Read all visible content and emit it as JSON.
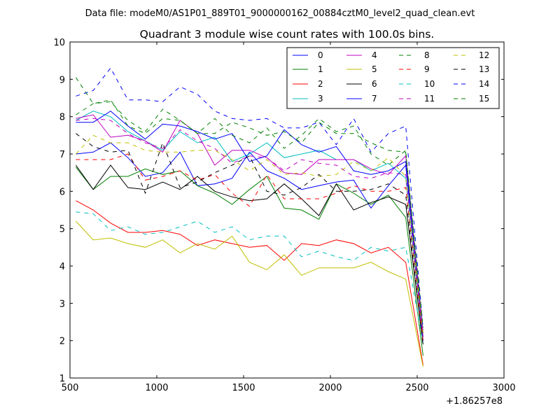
{
  "header": {
    "suptitle": "Data file: modeM0/AS1P01_889T01_9000000162_00884cztM0_level2_quad_clean.evt"
  },
  "chart_data": {
    "type": "line",
    "title": "Quadrant 3 module wise count rates with 100.0s bins.",
    "xlabel": "",
    "ylabel": "",
    "x_offset_label": "+1.86257e8",
    "xlim": [
      500,
      3000
    ],
    "ylim": [
      1,
      10
    ],
    "xticks": [
      500,
      1000,
      1500,
      2000,
      2500,
      3000
    ],
    "yticks": [
      1,
      2,
      3,
      4,
      5,
      6,
      7,
      8,
      9,
      10
    ],
    "grid": false,
    "legend_position": "top-right",
    "x": [
      534,
      634,
      734,
      834,
      934,
      1034,
      1134,
      1234,
      1334,
      1434,
      1534,
      1634,
      1734,
      1834,
      1934,
      2034,
      2134,
      2234,
      2334,
      2434,
      2534
    ],
    "series": [
      {
        "name": "0",
        "color": "#0000ff",
        "dash": "solid",
        "values": [
          7.0,
          7.05,
          7.3,
          6.9,
          6.4,
          6.5,
          7.05,
          6.15,
          6.2,
          6.35,
          7.05,
          6.55,
          6.35,
          6.05,
          6.15,
          6.25,
          6.3,
          5.55,
          6.15,
          6.7,
          2.1
        ]
      },
      {
        "name": "1",
        "color": "#008000",
        "dash": "solid",
        "values": [
          6.65,
          6.05,
          6.4,
          6.4,
          6.6,
          6.45,
          6.55,
          6.15,
          5.95,
          5.65,
          6.05,
          6.4,
          5.55,
          5.5,
          5.25,
          6.2,
          5.95,
          5.65,
          5.9,
          5.3,
          1.6
        ]
      },
      {
        "name": "2",
        "color": "#ff0000",
        "dash": "solid",
        "values": [
          5.75,
          5.5,
          5.15,
          4.9,
          4.9,
          4.95,
          4.85,
          4.55,
          4.7,
          4.6,
          4.5,
          4.55,
          4.15,
          4.6,
          4.55,
          4.7,
          4.6,
          4.35,
          4.5,
          4.1,
          1.35
        ]
      },
      {
        "name": "3",
        "color": "#00bfbf",
        "dash": "solid",
        "values": [
          7.9,
          8.15,
          8.0,
          7.6,
          7.35,
          7.1,
          7.6,
          7.3,
          7.45,
          6.8,
          7.0,
          7.3,
          6.9,
          7.0,
          7.1,
          6.85,
          6.85,
          6.55,
          6.75,
          6.35,
          2.0
        ]
      },
      {
        "name": "4",
        "color": "#bf00bf",
        "dash": "solid",
        "values": [
          7.95,
          8.05,
          7.45,
          7.5,
          7.35,
          7.05,
          7.9,
          7.55,
          6.7,
          7.1,
          7.1,
          6.9,
          6.5,
          6.45,
          6.85,
          6.85,
          6.85,
          6.6,
          6.45,
          6.95,
          2.2
        ]
      },
      {
        "name": "5",
        "color": "#bfbf00",
        "dash": "solid",
        "values": [
          5.2,
          4.7,
          4.75,
          4.6,
          4.5,
          4.7,
          4.35,
          4.6,
          4.45,
          4.8,
          4.1,
          3.9,
          4.3,
          3.75,
          3.95,
          3.95,
          3.95,
          4.1,
          3.85,
          3.65,
          1.3
        ]
      },
      {
        "name": "6",
        "color": "#000000",
        "dash": "solid",
        "values": [
          6.7,
          6.05,
          6.7,
          6.1,
          6.05,
          6.25,
          6.05,
          6.4,
          6.0,
          5.85,
          5.75,
          5.8,
          6.2,
          5.8,
          5.35,
          6.2,
          5.5,
          5.7,
          5.85,
          5.65,
          1.9
        ]
      },
      {
        "name": "7",
        "color": "#0000ff",
        "dash": "solid",
        "values": [
          7.85,
          7.85,
          8.15,
          7.75,
          7.4,
          7.8,
          7.75,
          7.6,
          7.4,
          7.55,
          6.8,
          6.95,
          7.65,
          7.25,
          7.05,
          7.2,
          6.55,
          6.45,
          6.55,
          6.8,
          2.0
        ]
      },
      {
        "name": "8",
        "color": "#008000",
        "dash": "dashed",
        "values": [
          8.05,
          8.35,
          8.4,
          7.9,
          7.6,
          8.2,
          7.9,
          7.55,
          7.95,
          7.5,
          7.3,
          7.7,
          7.15,
          7.5,
          7.95,
          7.6,
          7.75,
          7.0,
          6.7,
          7.1,
          2.2
        ]
      },
      {
        "name": "9",
        "color": "#ff0000",
        "dash": "dashed",
        "values": [
          6.85,
          6.85,
          6.85,
          7.0,
          6.3,
          6.4,
          6.55,
          6.3,
          6.45,
          5.95,
          5.6,
          6.45,
          5.8,
          5.8,
          5.8,
          5.95,
          6.15,
          6.0,
          6.0,
          6.1,
          2.0
        ]
      },
      {
        "name": "10",
        "color": "#00bfbf",
        "dash": "dashed",
        "values": [
          5.45,
          5.4,
          4.95,
          5.05,
          4.85,
          4.9,
          5.05,
          5.2,
          4.9,
          5.05,
          4.7,
          4.8,
          4.8,
          4.25,
          4.4,
          4.25,
          4.15,
          4.5,
          4.4,
          4.5,
          1.95
        ]
      },
      {
        "name": "11",
        "color": "#bf00bf",
        "dash": "dashed",
        "values": [
          7.9,
          7.95,
          7.9,
          7.55,
          7.3,
          7.15,
          7.65,
          7.35,
          7.15,
          6.75,
          6.95,
          6.9,
          6.55,
          6.85,
          6.75,
          6.7,
          6.4,
          6.35,
          6.5,
          6.45,
          2.1
        ]
      },
      {
        "name": "12",
        "color": "#bfbf00",
        "dash": "dashed",
        "values": [
          7.0,
          7.5,
          7.3,
          7.3,
          7.1,
          7.05,
          7.05,
          7.1,
          7.1,
          6.85,
          6.55,
          6.85,
          6.45,
          6.5,
          6.4,
          6.45,
          6.8,
          6.55,
          6.9,
          6.4,
          2.2
        ]
      },
      {
        "name": "13",
        "color": "#000000",
        "dash": "dashed",
        "values": [
          7.55,
          7.2,
          7.05,
          7.1,
          5.95,
          7.3,
          6.1,
          6.25,
          6.5,
          6.7,
          6.95,
          6.0,
          5.9,
          6.1,
          6.45,
          6.0,
          6.0,
          6.05,
          6.2,
          5.9,
          1.85
        ]
      },
      {
        "name": "14",
        "color": "#0000ff",
        "dash": "dashed",
        "values": [
          8.55,
          8.7,
          9.3,
          8.45,
          8.45,
          8.4,
          8.8,
          8.6,
          8.15,
          7.95,
          7.9,
          7.95,
          7.7,
          7.7,
          7.85,
          7.25,
          7.95,
          7.05,
          7.55,
          7.75,
          2.3
        ]
      },
      {
        "name": "15",
        "color": "#008000",
        "dash": "dashed",
        "values": [
          9.05,
          8.35,
          8.45,
          7.75,
          7.55,
          7.95,
          7.9,
          7.55,
          7.55,
          7.85,
          7.7,
          7.5,
          7.6,
          7.3,
          7.85,
          7.55,
          7.55,
          7.3,
          7.1,
          7.05,
          2.35
        ]
      }
    ]
  }
}
